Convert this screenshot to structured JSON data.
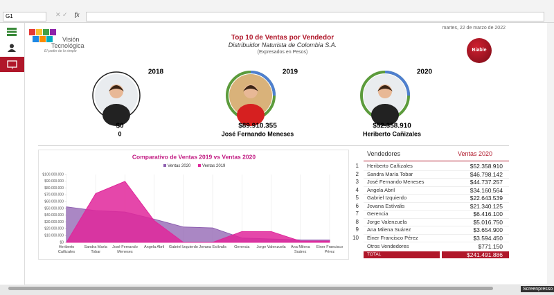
{
  "toolbar": {
    "cell_ref": "G1",
    "fx": "fx"
  },
  "header": {
    "logo_name_1": "Visión",
    "logo_name_2": "Tecnológica",
    "logo_tagline": "El poder de lo simple",
    "date": "martes, 22 de marzo de 2022",
    "title": "Top 10 de Ventas por Vendedor",
    "subtitle": "Distribuidor Naturista de Colombia S.A.",
    "note": "(Expresados en Pesos)",
    "brand": "Biable"
  },
  "top_sellers": [
    {
      "year": "2018",
      "amount": "$0",
      "name": "0"
    },
    {
      "year": "2019",
      "amount": "$89.910.355",
      "name": "José Fernando Meneses"
    },
    {
      "year": "2020",
      "amount": "$52.358.910",
      "name": "Heriberto Cañizales"
    }
  ],
  "chart_data": {
    "type": "area",
    "title": "Comparativo de Ventas 2019 vs Ventas 2020",
    "categories": [
      "Heriberto Cañizales",
      "Sandra María Tobar",
      "José Fernando Meneses",
      "Angela Abril",
      "Gabriel Izquierdo",
      "Jovana Estívalis",
      "Gerencia",
      "Jorge Valenzuela",
      "Ana Milena Suárez",
      "Einer Francisco Pérez"
    ],
    "series": [
      {
        "name": "Ventas 2020",
        "color": "#8e5fb0",
        "values": [
          52358910,
          46798142,
          44737257,
          34160564,
          22643539,
          21340125,
          6416100,
          5016750,
          3654900,
          3594450
        ]
      },
      {
        "name": "Ventas 2019",
        "color": "#e0279b",
        "values": [
          0,
          72000000,
          89910355,
          32000000,
          0,
          0,
          16000000,
          16000000,
          2000000,
          2000000
        ]
      }
    ],
    "ylim": [
      0,
      100000000
    ],
    "yticks": [
      {
        "value": 0,
        "label": "$0"
      },
      {
        "value": 10000000,
        "label": "$10.000.000"
      },
      {
        "value": 20000000,
        "label": "$20.000.000"
      },
      {
        "value": 30000000,
        "label": "$30.000.000"
      },
      {
        "value": 40000000,
        "label": "$40.000.000"
      },
      {
        "value": 50000000,
        "label": "$50.000.000"
      },
      {
        "value": 60000000,
        "label": "$60.000.000"
      },
      {
        "value": 70000000,
        "label": "$70.000.000"
      },
      {
        "value": 80000000,
        "label": "$80.000.000"
      },
      {
        "value": 90000000,
        "label": "$90.000.000"
      },
      {
        "value": 100000000,
        "label": "$100.000.000"
      }
    ],
    "legend": "top"
  },
  "table": {
    "headers": [
      "Vendedores",
      "Ventas 2020"
    ],
    "rows": [
      [
        1,
        "Heriberto Cañizales",
        "$52.358.910"
      ],
      [
        2,
        "Sandra María Tobar",
        "$46.798.142"
      ],
      [
        3,
        "José Fernando Meneses",
        "$44.737.257"
      ],
      [
        4,
        "Angela Abril",
        "$34.160.564"
      ],
      [
        5,
        "Gabriel Izquierdo",
        "$22.643.539"
      ],
      [
        6,
        "Jovana Estívalis",
        "$21.340.125"
      ],
      [
        7,
        "Gerencia",
        "$6.416.100"
      ],
      [
        8,
        "Jorge Valenzuela",
        "$5.016.750"
      ],
      [
        9,
        "Ana Milena Suárez",
        "$3.654.900"
      ],
      [
        10,
        "Einer Francisco Pérez",
        "$3.594.450"
      ]
    ],
    "other": [
      "Otros Vendedores",
      "$771.150"
    ],
    "total": [
      "TOTAL",
      "$241.491.886"
    ]
  },
  "watermark": "Screenpresso"
}
